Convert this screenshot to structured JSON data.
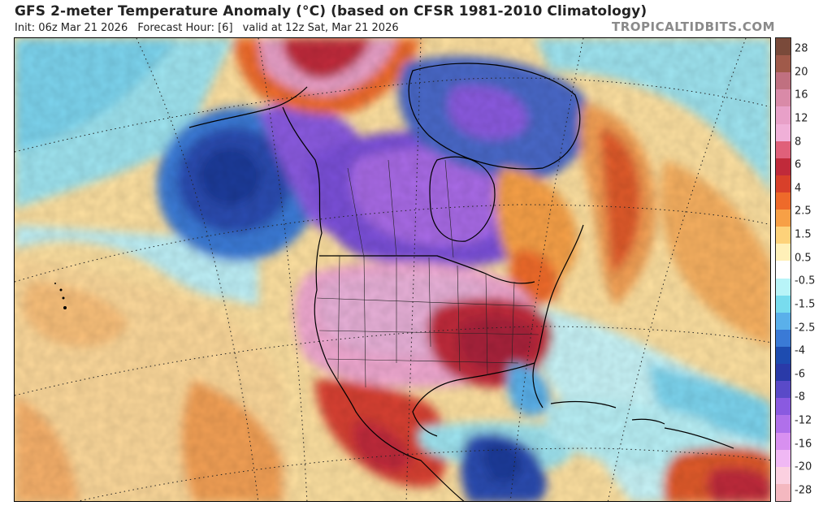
{
  "header": {
    "title": "GFS 2-meter Temperature Anomaly (°C) (based on CFSR 1981-2010 Climatology)",
    "init": "Init: 06z Mar 21 2026",
    "forecast_hour": "Forecast Hour: [6]",
    "valid": "valid at 12z Sat, Mar 21 2026",
    "brand": "TROPICALTIDBITS.COM"
  },
  "colorbar": {
    "labels": [
      "28",
      "20",
      "16",
      "12",
      "8",
      "6",
      "4",
      "2.5",
      "1.5",
      "0.5",
      "-0.5",
      "-1.5",
      "-2.5",
      "-4",
      "-6",
      "-8",
      "-12",
      "-16",
      "-20",
      "-28"
    ],
    "colors": [
      "#7a4a3a",
      "#a05a4a",
      "#c07080",
      "#d98aa8",
      "#e8a0c8",
      "#f0b0d8",
      "#e0607a",
      "#c02a3a",
      "#d8402a",
      "#ee6a2a",
      "#f7a046",
      "#fdd27a",
      "#fff0b8",
      "#ffffff",
      "#b8f4f8",
      "#78dcee",
      "#5ab0ea",
      "#3a7ad6",
      "#1e4cb0",
      "#2a3aa8",
      "#5a4ac8",
      "#8a5ae0",
      "#b070ea",
      "#d890f0",
      "#f0b8f4",
      "#fbd0e0",
      "#f4b8c0"
    ]
  },
  "map": {
    "region": "North America",
    "colors": {
      "warm_anomaly": "#e8a0c8",
      "hot_core": "#c02a3a",
      "cold_anomaly": "#8a5ae0",
      "cold_ocean": "#3a7ad6",
      "neutral": "#ffffff"
    }
  }
}
